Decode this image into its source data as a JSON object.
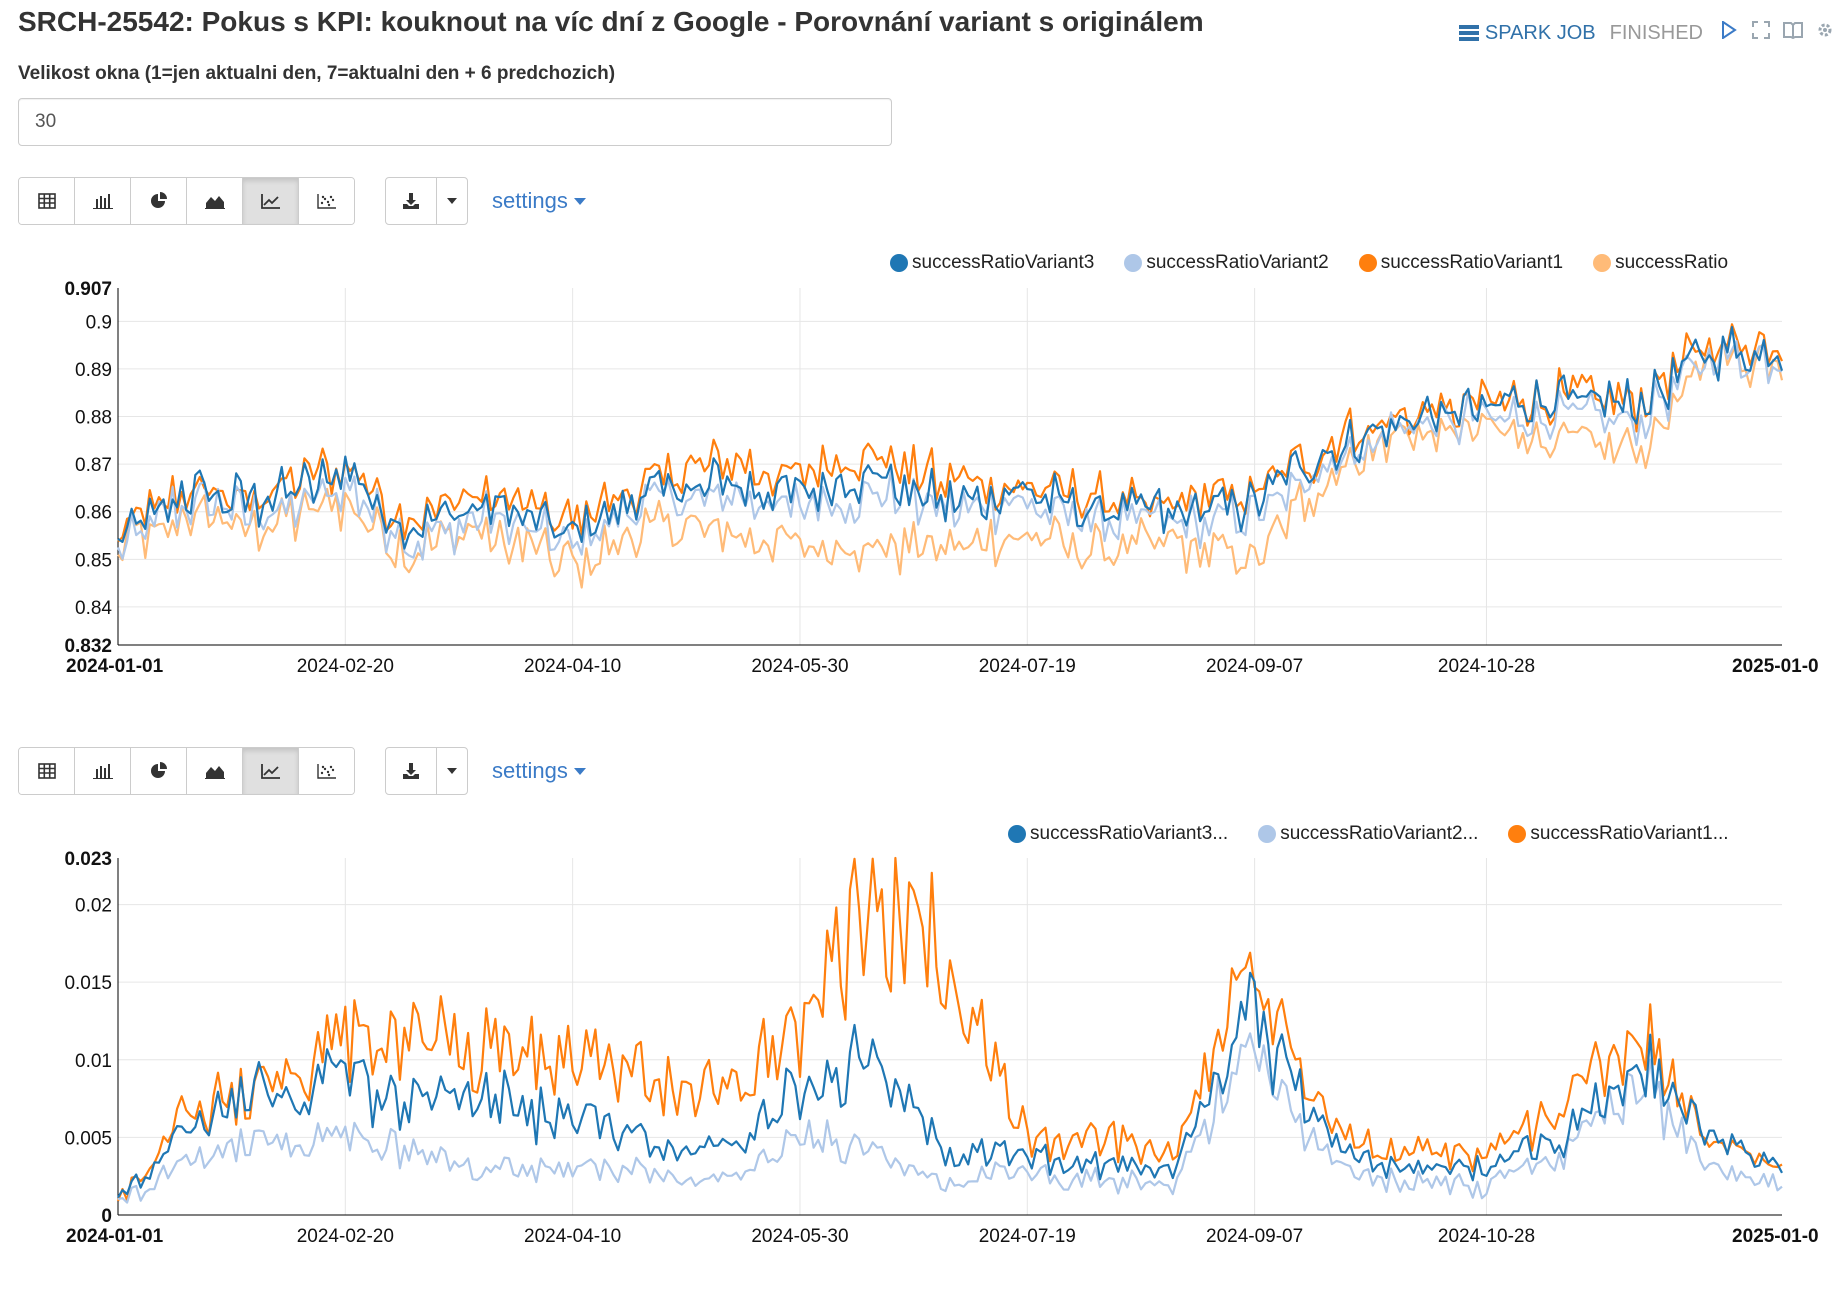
{
  "title": "SRCH-25542: Pokus s KPI: kouknout na víc dní z Google - Porovnání variant s originálem",
  "status": {
    "job_label": "SPARK JOB",
    "state": "FINISHED"
  },
  "param": {
    "label": "Velikost okna (1=jen aktualni den, 7=aktualni den + 6 predchozich)",
    "value": "30"
  },
  "toolbar": {
    "settings_label": "settings"
  },
  "colors": {
    "variant3": "#1f77b4",
    "variant2": "#aec7e8",
    "variant1": "#ff7f0e",
    "original": "#ffbb78"
  },
  "chart_data": [
    {
      "type": "line",
      "x_tick_labels": [
        "2024-01-01",
        "2024-02-20",
        "2024-04-10",
        "2024-05-30",
        "2024-07-19",
        "2024-09-07",
        "2024-10-28",
        "2025-01-0"
      ],
      "y_tick_labels": [
        "0.907",
        "0.9",
        "0.89",
        "0.88",
        "0.87",
        "0.86",
        "0.85",
        "0.84",
        "0.832"
      ],
      "ylim": [
        0.832,
        0.907
      ],
      "x_range": [
        "2024-01-01",
        "2025-01-01"
      ],
      "grid": true,
      "legend_position": "top-right",
      "legend": [
        "successRatioVariant3",
        "successRatioVariant2",
        "successRatioVariant1",
        "successRatio"
      ],
      "anchors_x": [
        "2024-01-01",
        "2024-01-15",
        "2024-02-01",
        "2024-02-20",
        "2024-03-05",
        "2024-03-20",
        "2024-04-10",
        "2024-04-25",
        "2024-05-10",
        "2024-05-30",
        "2024-06-15",
        "2024-07-01",
        "2024-07-19",
        "2024-08-05",
        "2024-08-20",
        "2024-09-07",
        "2024-09-25",
        "2024-10-10",
        "2024-10-28",
        "2024-11-15",
        "2024-12-01",
        "2024-12-15",
        "2025-01-01"
      ],
      "series": [
        {
          "name": "successRatioVariant3",
          "color": "#1f77b4",
          "values": [
            0.853,
            0.864,
            0.862,
            0.868,
            0.856,
            0.862,
            0.856,
            0.864,
            0.866,
            0.864,
            0.868,
            0.862,
            0.864,
            0.86,
            0.859,
            0.862,
            0.874,
            0.879,
            0.882,
            0.884,
            0.882,
            0.893,
            0.894
          ]
        },
        {
          "name": "successRatioVariant2",
          "color": "#aec7e8",
          "values": [
            0.852,
            0.862,
            0.859,
            0.865,
            0.853,
            0.859,
            0.853,
            0.862,
            0.863,
            0.861,
            0.864,
            0.86,
            0.862,
            0.858,
            0.857,
            0.86,
            0.872,
            0.877,
            0.88,
            0.88,
            0.879,
            0.892,
            0.893
          ]
        },
        {
          "name": "successRatioVariant1",
          "color": "#ff7f0e",
          "values": [
            0.854,
            0.865,
            0.863,
            0.87,
            0.858,
            0.864,
            0.858,
            0.866,
            0.87,
            0.868,
            0.873,
            0.866,
            0.866,
            0.862,
            0.861,
            0.864,
            0.875,
            0.88,
            0.883,
            0.885,
            0.883,
            0.895,
            0.896
          ]
        },
        {
          "name": "successRatio",
          "color": "#ffbb78",
          "values": [
            0.852,
            0.859,
            0.856,
            0.862,
            0.851,
            0.857,
            0.848,
            0.857,
            0.856,
            0.853,
            0.853,
            0.852,
            0.855,
            0.852,
            0.853,
            0.851,
            0.87,
            0.876,
            0.878,
            0.875,
            0.873,
            0.892,
            0.892
          ]
        }
      ]
    },
    {
      "type": "line",
      "x_tick_labels": [
        "2024-01-01",
        "2024-02-20",
        "2024-04-10",
        "2024-05-30",
        "2024-07-19",
        "2024-09-07",
        "2024-10-28",
        "2025-01-0"
      ],
      "y_tick_labels": [
        "0.023",
        "0.02",
        "0.015",
        "0.01",
        "0.005",
        "0"
      ],
      "ylim": [
        0,
        0.023
      ],
      "x_range": [
        "2024-01-01",
        "2025-01-01"
      ],
      "grid": true,
      "legend_position": "top-right",
      "legend": [
        "successRatioVariant3...",
        "successRatioVariant2...",
        "successRatioVariant1..."
      ],
      "anchors_x": [
        "2024-01-01",
        "2024-01-15",
        "2024-02-01",
        "2024-02-20",
        "2024-03-05",
        "2024-03-20",
        "2024-04-10",
        "2024-04-25",
        "2024-05-10",
        "2024-05-30",
        "2024-06-15",
        "2024-07-01",
        "2024-07-19",
        "2024-08-05",
        "2024-08-20",
        "2024-09-07",
        "2024-09-25",
        "2024-10-10",
        "2024-10-28",
        "2024-11-15",
        "2024-12-01",
        "2024-12-15",
        "2025-01-01"
      ],
      "series": [
        {
          "name": "successRatioVariant3...",
          "color": "#1f77b4",
          "values": [
            0.001,
            0.005,
            0.008,
            0.009,
            0.007,
            0.008,
            0.006,
            0.005,
            0.004,
            0.008,
            0.01,
            0.004,
            0.004,
            0.003,
            0.003,
            0.013,
            0.004,
            0.003,
            0.003,
            0.005,
            0.01,
            0.005,
            0.003
          ]
        },
        {
          "name": "successRatioVariant2...",
          "color": "#aec7e8",
          "values": [
            0.001,
            0.003,
            0.005,
            0.005,
            0.004,
            0.003,
            0.003,
            0.003,
            0.002,
            0.005,
            0.004,
            0.002,
            0.003,
            0.002,
            0.002,
            0.011,
            0.003,
            0.002,
            0.002,
            0.004,
            0.009,
            0.003,
            0.002
          ]
        },
        {
          "name": "successRatioVariant1...",
          "color": "#ff7f0e",
          "values": [
            0.001,
            0.006,
            0.009,
            0.011,
            0.011,
            0.011,
            0.01,
            0.009,
            0.008,
            0.012,
            0.02,
            0.016,
            0.005,
            0.005,
            0.004,
            0.016,
            0.005,
            0.004,
            0.004,
            0.007,
            0.012,
            0.005,
            0.003
          ]
        }
      ]
    }
  ]
}
